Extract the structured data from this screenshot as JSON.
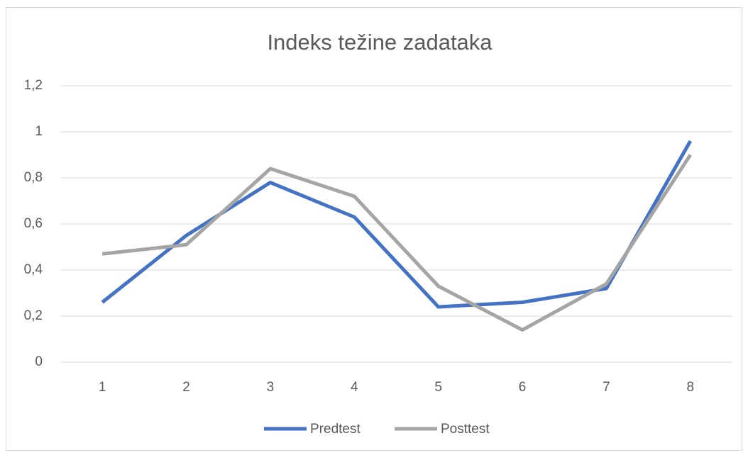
{
  "chart_data": {
    "type": "line",
    "title": "Indeks težine zadataka",
    "categories": [
      "1",
      "2",
      "3",
      "4",
      "5",
      "6",
      "7",
      "8"
    ],
    "series": [
      {
        "name": "Predtest",
        "color": "#4472c4",
        "values": [
          0.26,
          0.55,
          0.78,
          0.63,
          0.24,
          0.26,
          0.32,
          0.96
        ]
      },
      {
        "name": "Posttest",
        "color": "#a5a5a5",
        "values": [
          0.47,
          0.51,
          0.84,
          0.72,
          0.33,
          0.14,
          0.34,
          0.9
        ]
      }
    ],
    "ylim": [
      0,
      1.2
    ],
    "yticks": [
      0,
      {
        "value": 0.2,
        "label": "0,2"
      },
      {
        "value": 0.4,
        "label": "0,4"
      },
      {
        "value": 0.6,
        "label": "0,6"
      },
      {
        "value": 0.8,
        "label": "0,8"
      },
      1,
      {
        "value": 1.2,
        "label": "1,2"
      }
    ],
    "grid": true,
    "legend": "bottom"
  }
}
